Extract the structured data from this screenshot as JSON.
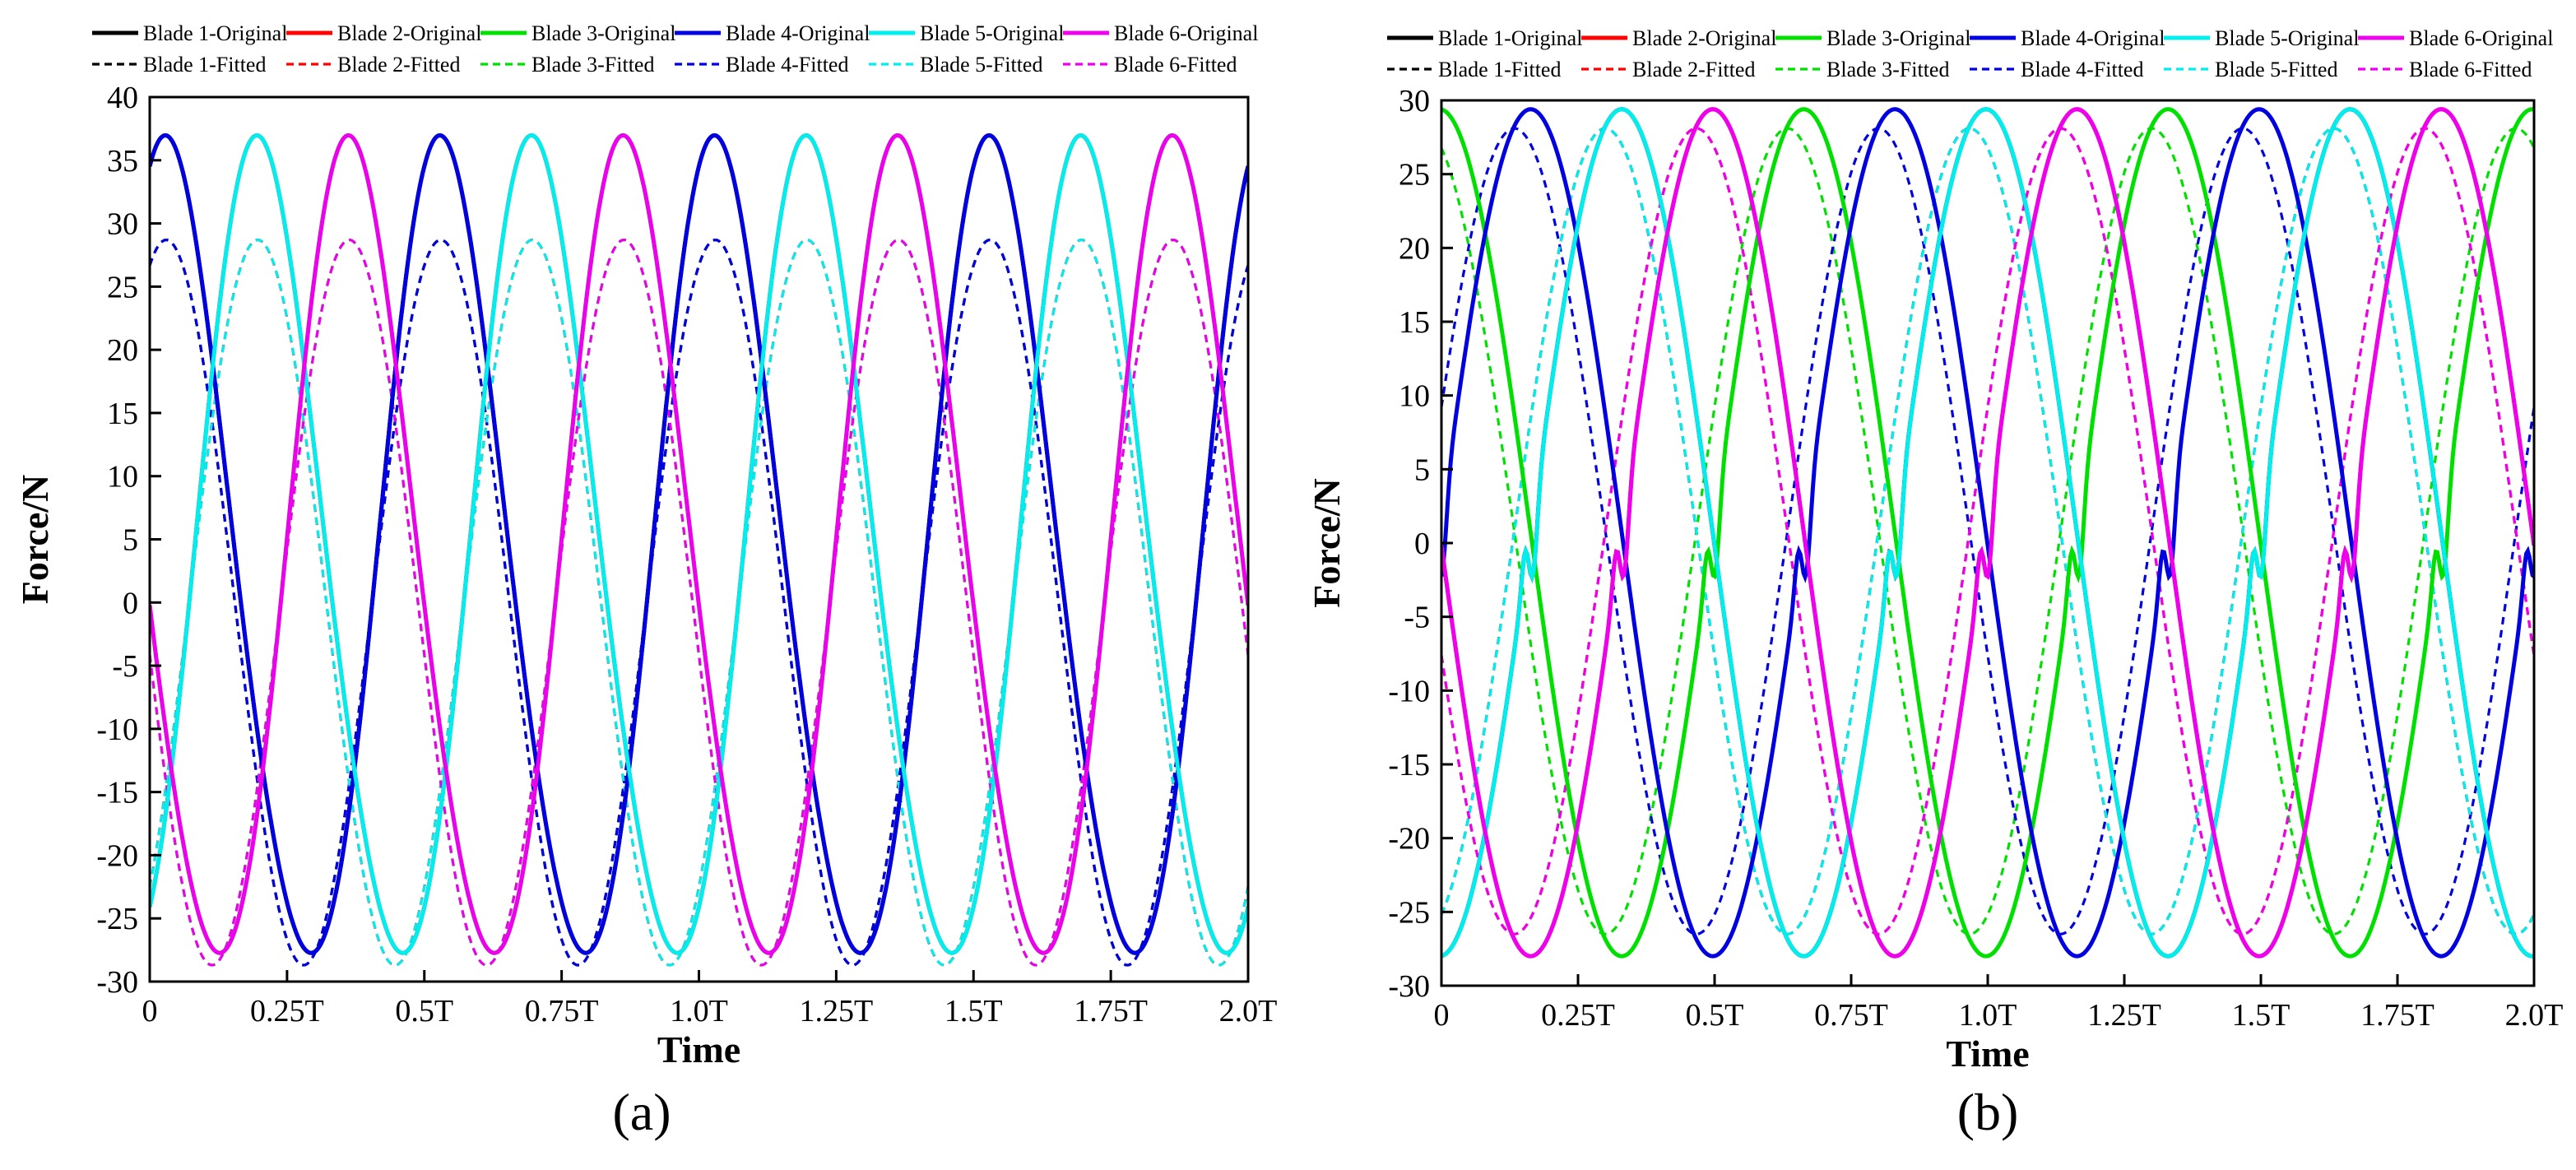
{
  "colors": {
    "blade1": "#000000",
    "blade2": "#ff0000",
    "blade3": "#00e000",
    "blade4": "#0000e0",
    "blade5": "#00eeee",
    "blade6": "#ee00ee"
  },
  "chart_data": [
    {
      "type": "line",
      "panel_label": "(a)",
      "xlabel": "Time",
      "ylabel": "Force/N",
      "xlim": [
        0,
        2.0
      ],
      "ylim": [
        -30,
        40
      ],
      "x_tick_labels": [
        "0",
        "0.25T",
        "0.5T",
        "0.75T",
        "1.0T",
        "1.25T",
        "1.5T",
        "1.75T",
        "2.0T"
      ],
      "y_ticks": [
        -30,
        -25,
        -20,
        -15,
        -10,
        -5,
        0,
        5,
        10,
        15,
        20,
        25,
        30,
        35,
        40
      ],
      "x_unit": "T",
      "legend": [
        "Blade 1-Original",
        "Blade 2-Original",
        "Blade 3-Original",
        "Blade 4-Original",
        "Blade 5-Original",
        "Blade 6-Original",
        "Blade 1-Fitted",
        "Blade 2-Fitted",
        "Blade 3-Fitted",
        "Blade 4-Fitted",
        "Blade 5-Fitted",
        "Blade 6-Fitted"
      ],
      "series_model": {
        "period_T": 0.5,
        "blade_phase_step_T": 0.1667,
        "original": {
          "offset": 3.4,
          "amplitude": 32.2,
          "harmonic2_amplitude": 2.0,
          "peak_first_at_T": 0.035
        },
        "fitted": {
          "offset": 0.0,
          "amplitude": 28.7,
          "peak_first_at_T": 0.03
        },
        "original_peaks_N": [
          35.5,
          35.6,
          35.3,
          35.6,
          35.7,
          35.3
        ],
        "original_troughs_N": [
          -28.8,
          -28.9,
          -28.6,
          -28.8,
          -29.0,
          -28.5
        ],
        "fitted_peaks_N": [
          28.7,
          28.7,
          28.4,
          28.6,
          28.8,
          28.5
        ],
        "fitted_troughs_N": [
          -28.7,
          -28.9,
          -28.4,
          -28.6,
          -28.8,
          -28.5
        ]
      }
    },
    {
      "type": "line",
      "panel_label": "(b)",
      "xlabel": "Time",
      "ylabel": "Force/N",
      "xlim": [
        0,
        2.0
      ],
      "ylim": [
        -30,
        30
      ],
      "x_tick_labels": [
        "0",
        "0.25T",
        "0.5T",
        "0.75T",
        "1.0T",
        "1.25T",
        "1.5T",
        "1.75T",
        "2.0T"
      ],
      "y_ticks": [
        -30,
        -25,
        -20,
        -15,
        -10,
        -5,
        0,
        5,
        10,
        15,
        20,
        25,
        30
      ],
      "x_unit": "T",
      "legend": [
        "Blade 1-Original",
        "Blade 2-Original",
        "Blade 3-Original",
        "Blade 4-Original",
        "Blade 5-Original",
        "Blade 6-Original",
        "Blade 1-Fitted",
        "Blade 2-Fitted",
        "Blade 3-Fitted",
        "Blade 4-Fitted",
        "Blade 5-Fitted",
        "Blade 6-Fitted"
      ],
      "series_model": {
        "period_T": 0.6667,
        "blade_phase_step_T": 0.1667,
        "original": {
          "offset": 0.7,
          "amplitude": 28.7,
          "peak_first_at_T": 0.33,
          "notch_after_peak_T": 0.5,
          "notch_depth_N": -3.5
        },
        "fitted": {
          "offset": 0.8,
          "amplitude": 27.3,
          "peak_first_at_T": 0.3
        },
        "original_peaks_N": [
          29.4,
          29.5,
          29.1,
          29.4,
          29.6,
          29.1
        ],
        "original_troughs_N": [
          -28.0,
          -28.1,
          -27.8,
          -28.0,
          -28.2,
          -27.9
        ],
        "fitted_peaks_N": [
          28.0,
          28.0,
          27.8,
          28.0,
          28.0,
          27.9
        ],
        "fitted_troughs_N": [
          -26.3,
          -26.3,
          -26.4,
          -26.2,
          -26.3,
          -26.4
        ]
      }
    }
  ]
}
